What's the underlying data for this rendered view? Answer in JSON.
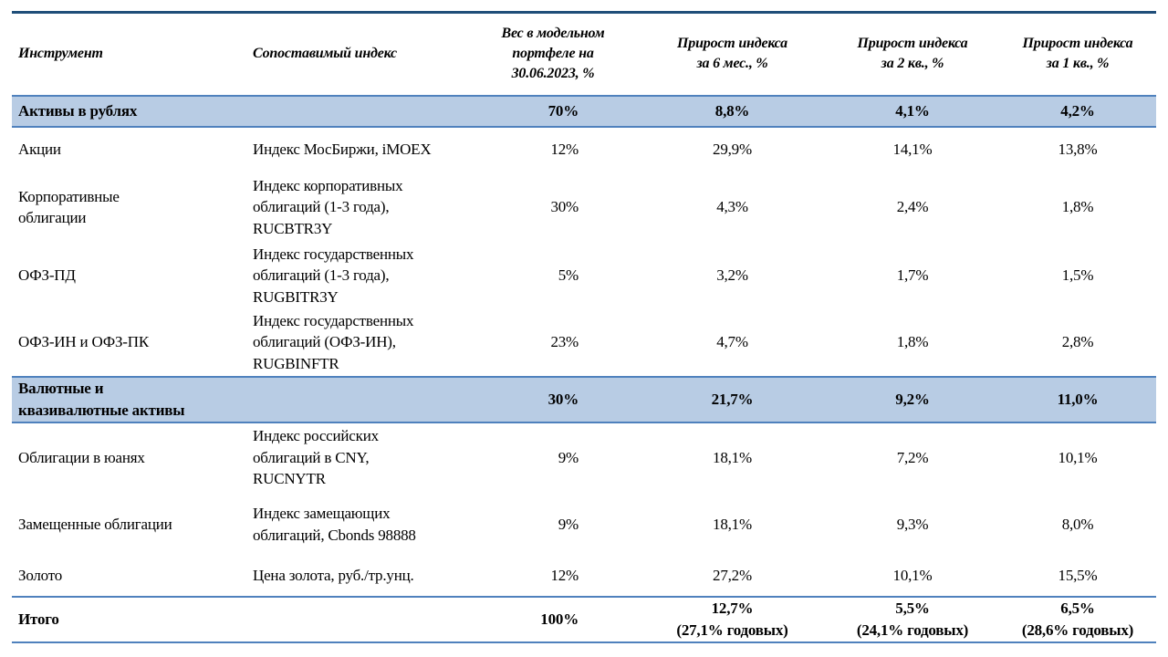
{
  "colors": {
    "section_row_bg": "#b8cce4",
    "section_border": "#4f81bd",
    "table_top_border": "#1f4e79",
    "text": "#000000"
  },
  "table": {
    "columns": {
      "instrument": "Инструмент",
      "index": "Сопоставимый индекс",
      "weight": "Вес в модельном\nпортфеле на\n30.06.2023, %",
      "g6m": "Прирост индекса\nза 6 мес., %",
      "g2q": "Прирост индекса\nза 2 кв., %",
      "g1q": "Прирост индекса\nза 1 кв., %"
    },
    "rows": [
      {
        "type": "section",
        "instrument": "Активы в рублях",
        "index": "",
        "weight": "70%",
        "g6m": "8,8%",
        "g2q": "4,1%",
        "g1q": "4,2%"
      },
      {
        "type": "data",
        "instrument": "Акции",
        "index": "Индекс МосБиржи, iMOEX",
        "weight": "12%",
        "g6m": "29,9%",
        "g2q": "14,1%",
        "g1q": "13,8%"
      },
      {
        "type": "data",
        "instrument": "Корпоративные\nоблигации",
        "index": "Индекс корпоративных\nоблигаций (1-3 года),\nRUCBTR3Y",
        "weight": "30%",
        "g6m": "4,3%",
        "g2q": "2,4%",
        "g1q": "1,8%"
      },
      {
        "type": "data",
        "instrument": "ОФЗ-ПД",
        "index": "Индекс государственных\nоблигаций (1-3 года),\nRUGBITR3Y",
        "weight": "5%",
        "g6m": "3,2%",
        "g2q": "1,7%",
        "g1q": "1,5%"
      },
      {
        "type": "data",
        "instrument": "ОФЗ-ИН и ОФЗ-ПК",
        "index": "Индекс государственных\nоблигаций (ОФЗ-ИН),\nRUGBINFTR",
        "weight": "23%",
        "g6m": "4,7%",
        "g2q": "1,8%",
        "g1q": "2,8%"
      },
      {
        "type": "section",
        "instrument": "Валютные и\nквазивалютные активы",
        "index": "",
        "weight": "30%",
        "g6m": "21,7%",
        "g2q": "9,2%",
        "g1q": "11,0%"
      },
      {
        "type": "data",
        "instrument": "Облигации в юанях",
        "index": "Индекс российских\nоблигаций в CNY,\nRUCNYTR",
        "weight": "9%",
        "g6m": "18,1%",
        "g2q": "7,2%",
        "g1q": "10,1%"
      },
      {
        "type": "data",
        "instrument": "Замещенные облигации",
        "index": "Индекс замещающих\nоблигаций, Cbonds 98888",
        "weight": "9%",
        "g6m": "18,1%",
        "g2q": "9,3%",
        "g1q": "8,0%"
      },
      {
        "type": "data",
        "instrument": "Золото",
        "index": "Цена золота, руб./тр.унц.",
        "weight": "12%",
        "g6m": "27,2%",
        "g2q": "10,1%",
        "g1q": "15,5%"
      },
      {
        "type": "total",
        "instrument": "Итого",
        "index": "",
        "weight": "100%",
        "g6m": "12,7%\n(27,1% годовых)",
        "g2q": "5,5%\n(24,1% годовых)",
        "g1q": "6,5%\n(28,6% годовых)"
      }
    ]
  }
}
